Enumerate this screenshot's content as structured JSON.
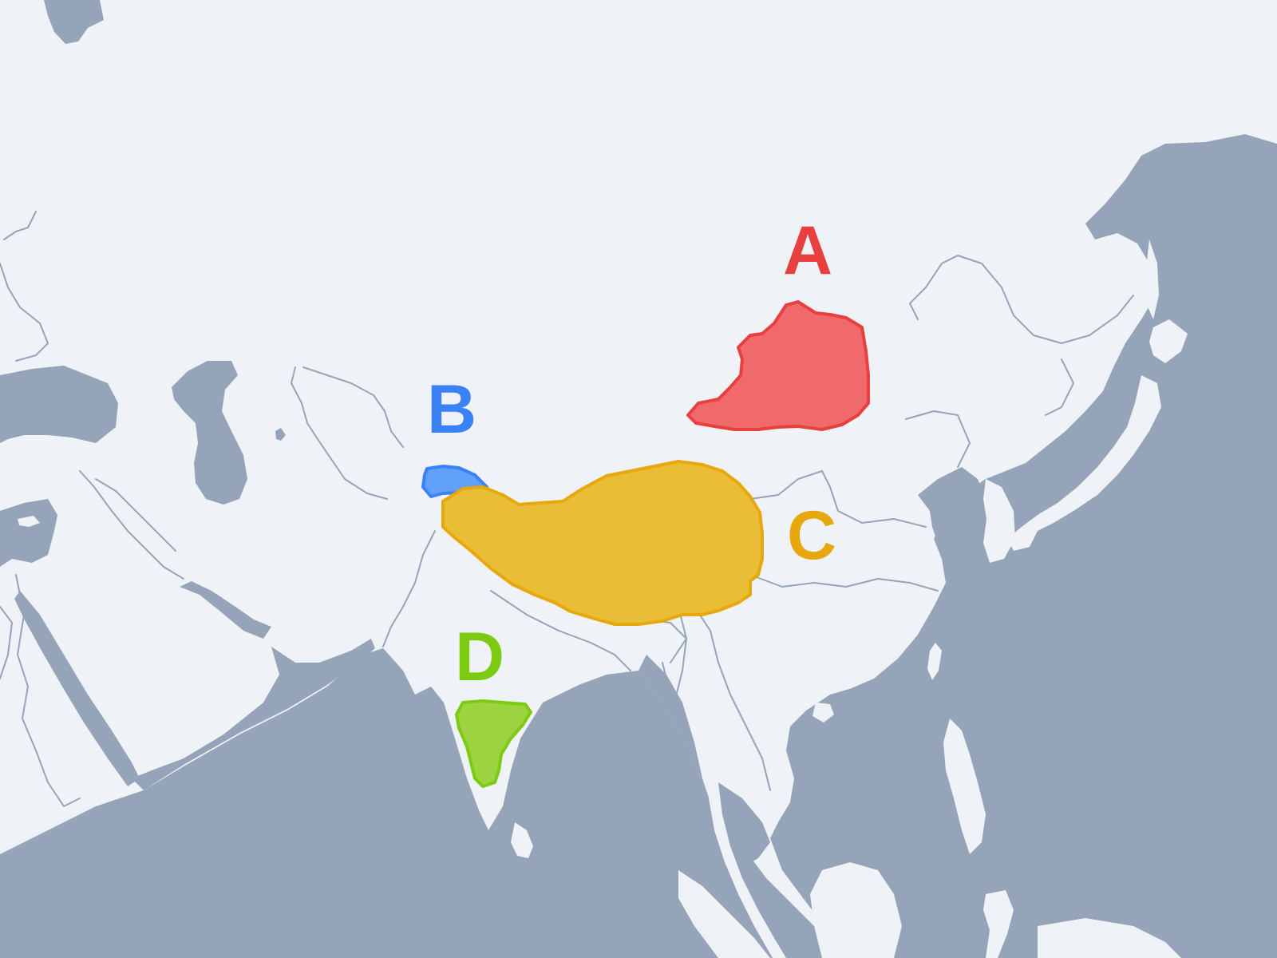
{
  "map": {
    "colors": {
      "land": "#eff3f8",
      "water": "#95a4b8",
      "rivers": "#95a4b8"
    },
    "regions": [
      {
        "id": "A",
        "label": "A",
        "fill": "#f06a6c",
        "stroke": "#e8403f"
      },
      {
        "id": "B",
        "label": "B",
        "fill": "#60a0f8",
        "stroke": "#3b82f6"
      },
      {
        "id": "C",
        "label": "C",
        "fill": "#e9bd35",
        "stroke": "#e6a80c"
      },
      {
        "id": "D",
        "label": "D",
        "fill": "#9dd341",
        "stroke": "#7ccb12"
      }
    ]
  }
}
